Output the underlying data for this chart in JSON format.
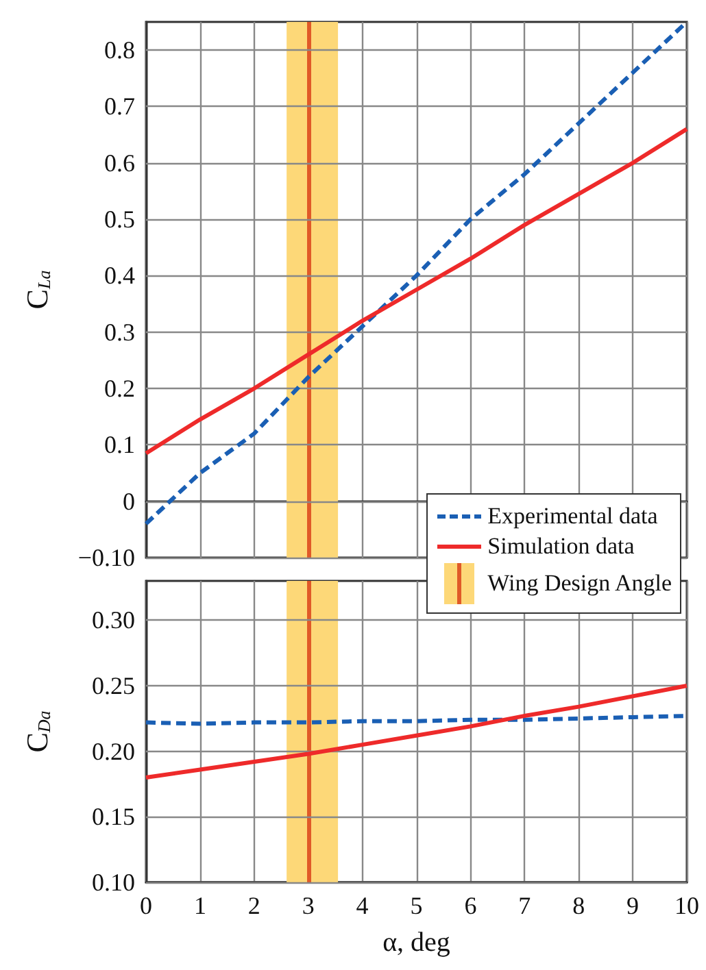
{
  "chart_data": [
    {
      "type": "line",
      "ylabel": "C$_{La}$",
      "x": [
        0,
        1,
        2,
        3,
        4,
        5,
        6,
        7,
        8,
        9,
        10
      ],
      "xlim": [
        0,
        10
      ],
      "xticks": [
        0,
        1,
        2,
        3,
        4,
        5,
        6,
        7,
        8,
        9,
        10
      ],
      "ylim": [
        -0.1,
        0.85
      ],
      "yticks": [
        {
          "value": -0.1,
          "label": "−0.10"
        },
        0,
        0.1,
        0.2,
        0.3,
        0.4,
        0.5,
        0.6,
        0.7,
        0.8
      ],
      "tick_labels": "y",
      "grid": true,
      "legend": "bottom right",
      "marker": "none",
      "series": [
        {
          "name": "Experimental data",
          "color": "#1a5fb4",
          "line_style": "dashed",
          "values": [
            -0.04,
            0.05,
            0.12,
            0.22,
            0.31,
            0.4,
            0.5,
            0.58,
            0.67,
            0.76,
            0.85
          ]
        },
        {
          "name": "Simulation data",
          "color": "#ee2a2a",
          "line_style": "solid",
          "values": [
            0.085,
            0.145,
            0.2,
            0.26,
            0.32,
            0.375,
            0.43,
            0.49,
            0.545,
            0.6,
            0.66
          ]
        }
      ],
      "bands": [
        {
          "axis": "x",
          "from": 2.6,
          "to": 3.55,
          "label": "Wing Design Angle",
          "color": "#fdd878"
        }
      ],
      "ref_lines": [
        {
          "axis": "x",
          "value": 3,
          "color": "#e05a28"
        }
      ]
    },
    {
      "type": "line",
      "ylabel": "C$_{Da}$",
      "xlabel": "α, deg",
      "x": [
        0,
        1,
        2,
        3,
        4,
        5,
        6,
        7,
        8,
        9,
        10
      ],
      "xlim": [
        0,
        10
      ],
      "xticks": [
        0,
        1,
        2,
        3,
        4,
        5,
        6,
        7,
        8,
        9,
        10
      ],
      "ylim": [
        0.1,
        0.33
      ],
      "yticks": [
        {
          "value": 0.1,
          "label": "0.10"
        },
        0.15,
        {
          "value": 0.2,
          "label": "0.20"
        },
        0.25,
        {
          "value": 0.3,
          "label": "0.30"
        }
      ],
      "grid": true,
      "marker": "none",
      "series": [
        {
          "color": "#1a5fb4",
          "line_style": "dashed",
          "values": [
            0.222,
            0.221,
            0.222,
            0.222,
            0.223,
            0.223,
            0.224,
            0.224,
            0.225,
            0.226,
            0.227
          ]
        },
        {
          "color": "#ee2a2a",
          "line_style": "solid",
          "values": [
            0.18,
            0.186,
            0.192,
            0.198,
            0.205,
            0.212,
            0.219,
            0.227,
            0.234,
            0.242,
            0.25
          ]
        }
      ],
      "bands": [
        {
          "axis": "x",
          "from": 2.6,
          "to": 3.55,
          "color": "#fdd878"
        }
      ],
      "ref_lines": [
        {
          "axis": "x",
          "value": 3,
          "color": "#e05a28"
        }
      ]
    }
  ]
}
